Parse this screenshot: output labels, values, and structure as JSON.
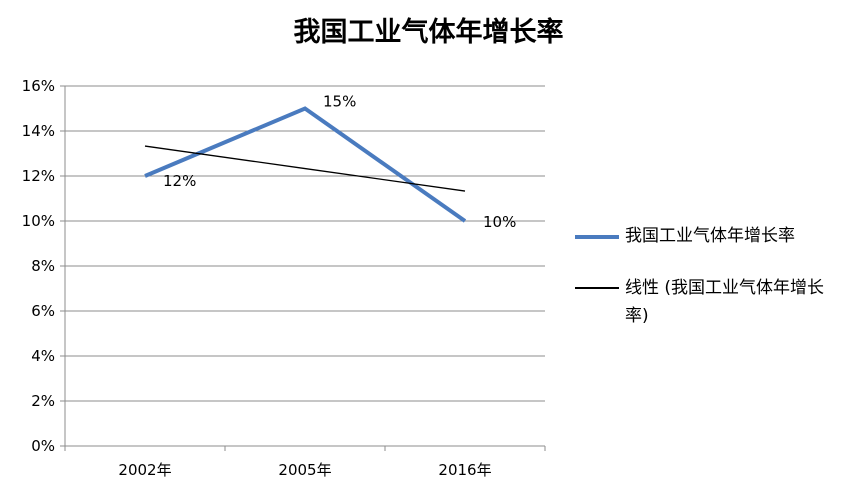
{
  "chart_data": {
    "type": "line",
    "title": "我国工业气体年增长率",
    "categories": [
      "2002年",
      "2005年",
      "2016年"
    ],
    "series": [
      {
        "name": "我国工业气体年增长率",
        "values": [
          12,
          15,
          10
        ],
        "labels": [
          "12%",
          "15%",
          "10%"
        ],
        "color": "#4a7bbf"
      },
      {
        "name": "线性 (我国工业气体年增长率)",
        "values": [
          13.33,
          12.33,
          11.33
        ],
        "color": "#000000",
        "trendline": true
      }
    ],
    "yticks": [
      "0%",
      "2%",
      "4%",
      "6%",
      "8%",
      "10%",
      "12%",
      "14%",
      "16%"
    ],
    "ylim": [
      0,
      16
    ],
    "grid": true,
    "legend_position": "right"
  }
}
